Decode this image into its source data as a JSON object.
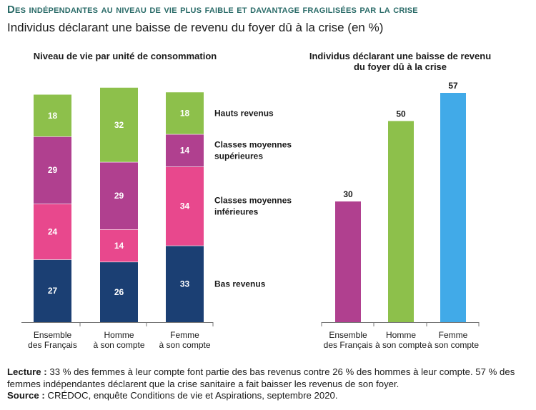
{
  "header": {
    "title": "Des indépendantes au niveau de vie plus faible et davantage fragilisées par la crise",
    "subtitle": "Individus déclarant une baisse de revenu du foyer dû à la crise (en %)"
  },
  "colors": {
    "hauts": "#8dc04b",
    "cms": "#b0408f",
    "cmi": "#e8488d",
    "bas": "#1b3f73",
    "ensemble": "#b0408f",
    "homme": "#8dc04b",
    "femme": "#41aae8"
  },
  "chart_data": [
    {
      "type": "bar",
      "stacked": true,
      "title": "Niveau de vie par unité de consommation",
      "categories": [
        "Ensemble des Français",
        "Homme à son compte",
        "Femme à son compte"
      ],
      "category_lines": [
        [
          "Ensemble",
          "des Français"
        ],
        [
          "Homme",
          "à son compte"
        ],
        [
          "Femme",
          "à son compte"
        ]
      ],
      "series": [
        {
          "name": "Bas revenus",
          "label_lines": [
            "Bas revenus"
          ],
          "values": [
            27,
            26,
            33
          ],
          "color": "#1b3f73"
        },
        {
          "name": "Classes moyennes inférieures",
          "label_lines": [
            "Classes moyennes",
            "inférieures"
          ],
          "values": [
            24,
            14,
            34
          ],
          "color": "#e8488d"
        },
        {
          "name": "Classes moyennes supérieures",
          "label_lines": [
            "Classes moyennes",
            "supérieures"
          ],
          "values": [
            29,
            29,
            14
          ],
          "color": "#b0408f"
        },
        {
          "name": "Hauts revenus",
          "label_lines": [
            "Hauts revenus"
          ],
          "values": [
            18,
            32,
            18
          ],
          "color": "#8dc04b"
        }
      ],
      "ylim": [
        0,
        100
      ]
    },
    {
      "type": "bar",
      "title": "Individus déclarant une baisse de revenu du foyer dû à la crise",
      "categories": [
        "Ensemble des Français",
        "Homme à son compte",
        "Femme à son compte"
      ],
      "category_lines": [
        [
          "Ensemble",
          "des Français"
        ],
        [
          "Homme",
          "à son compte"
        ],
        [
          "Femme",
          "à son compte"
        ]
      ],
      "values": [
        30,
        50,
        57
      ],
      "colors": [
        "#b0408f",
        "#8dc04b",
        "#41aae8"
      ],
      "ylim": [
        0,
        100
      ]
    }
  ],
  "footer": {
    "lecture_label": "Lecture :",
    "lecture_text": " 33 % des femmes à leur compte font partie des bas revenus contre 26 % des hommes à leur compte. 57 % des femmes indépendantes déclarent que la crise sanitaire a fait baisser les revenus de son foyer.",
    "source_label": "Source :",
    "source_text": " CRÉDOC, enquête Conditions de vie et Aspirations, septembre 2020."
  }
}
